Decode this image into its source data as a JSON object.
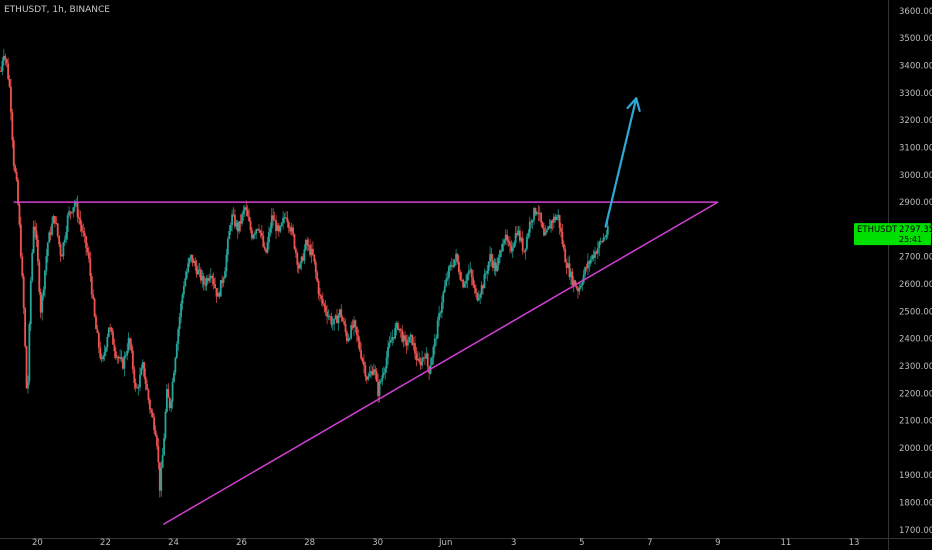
{
  "header": {
    "symbol_line": "ETHUSDT, 1h, BINANCE"
  },
  "price_label": {
    "symbol": "ETHUSDT",
    "price": "2797.35",
    "countdown": "25:41"
  },
  "colors": {
    "background": "#000000",
    "up_candle": "#26a69a",
    "down_candle": "#ef5350",
    "axis_text": "#bdbdbd",
    "trendline": "#d33fd5",
    "arrow": "#2ea8d5",
    "price_tag": "#00e000"
  },
  "chart_data": {
    "type": "candlestick",
    "title": "ETHUSDT, 1h, BINANCE",
    "y_axis": {
      "ticks": [
        1700,
        1800,
        1900,
        2000,
        2100,
        2200,
        2300,
        2400,
        2500,
        2600,
        2700,
        2800,
        2900,
        3000,
        3100,
        3200,
        3300,
        3400,
        3500,
        3600
      ],
      "tick_labels": [
        "1700.00",
        "1800.00",
        "1900.00",
        "2000.00",
        "2100.00",
        "2200.00",
        "2300.00",
        "2400.00",
        "2500.00",
        "2600.00",
        "2700.00",
        "2800.00",
        "2900.00",
        "3000.00",
        "3100.00",
        "3200.00",
        "3300.00",
        "3400.00",
        "3500.00",
        "3600.00"
      ],
      "range": [
        1670,
        3640
      ]
    },
    "x_axis": {
      "ticks": [
        "20",
        "22",
        "24",
        "26",
        "28",
        "30",
        "Jun",
        "3",
        "5",
        "7",
        "9",
        "11",
        "13"
      ],
      "tick_days": [
        20,
        22,
        24,
        26,
        28,
        30,
        32,
        34,
        36,
        38,
        40,
        42,
        44
      ],
      "range": [
        18.9,
        45.0
      ],
      "unit": "day (May, continuing into June)"
    },
    "grid": false,
    "price_path": [
      [
        18.93,
        3380
      ],
      [
        19.0,
        3460
      ],
      [
        19.1,
        3400
      ],
      [
        19.2,
        3300
      ],
      [
        19.3,
        3050
      ],
      [
        19.4,
        2950
      ],
      [
        19.5,
        2750
      ],
      [
        19.6,
        2500
      ],
      [
        19.7,
        2150
      ],
      [
        19.8,
        2600
      ],
      [
        19.9,
        2850
      ],
      [
        20.0,
        2700
      ],
      [
        20.1,
        2500
      ],
      [
        20.3,
        2750
      ],
      [
        20.5,
        2850
      ],
      [
        20.7,
        2700
      ],
      [
        20.9,
        2850
      ],
      [
        21.1,
        2900
      ],
      [
        21.3,
        2800
      ],
      [
        21.5,
        2700
      ],
      [
        21.7,
        2450
      ],
      [
        21.9,
        2300
      ],
      [
        22.1,
        2450
      ],
      [
        22.3,
        2350
      ],
      [
        22.5,
        2300
      ],
      [
        22.7,
        2400
      ],
      [
        22.9,
        2200
      ],
      [
        23.1,
        2300
      ],
      [
        23.3,
        2150
      ],
      [
        23.5,
        2050
      ],
      [
        23.6,
        1850
      ],
      [
        23.7,
        2000
      ],
      [
        23.8,
        2200
      ],
      [
        23.9,
        2150
      ],
      [
        24.1,
        2400
      ],
      [
        24.3,
        2600
      ],
      [
        24.5,
        2700
      ],
      [
        24.7,
        2650
      ],
      [
        24.9,
        2600
      ],
      [
        25.1,
        2650
      ],
      [
        25.3,
        2550
      ],
      [
        25.5,
        2650
      ],
      [
        25.7,
        2850
      ],
      [
        25.9,
        2800
      ],
      [
        26.1,
        2880
      ],
      [
        26.3,
        2780
      ],
      [
        26.5,
        2820
      ],
      [
        26.7,
        2700
      ],
      [
        26.9,
        2850
      ],
      [
        27.1,
        2780
      ],
      [
        27.3,
        2860
      ],
      [
        27.5,
        2780
      ],
      [
        27.7,
        2650
      ],
      [
        27.9,
        2750
      ],
      [
        28.1,
        2700
      ],
      [
        28.3,
        2550
      ],
      [
        28.5,
        2500
      ],
      [
        28.7,
        2450
      ],
      [
        28.9,
        2500
      ],
      [
        29.1,
        2400
      ],
      [
        29.3,
        2450
      ],
      [
        29.5,
        2350
      ],
      [
        29.7,
        2250
      ],
      [
        29.9,
        2300
      ],
      [
        30.0,
        2200
      ],
      [
        30.2,
        2300
      ],
      [
        30.4,
        2400
      ],
      [
        30.6,
        2450
      ],
      [
        30.8,
        2380
      ],
      [
        31.0,
        2400
      ],
      [
        31.2,
        2300
      ],
      [
        31.4,
        2350
      ],
      [
        31.5,
        2280
      ],
      [
        31.7,
        2400
      ],
      [
        31.9,
        2550
      ],
      [
        32.1,
        2650
      ],
      [
        32.3,
        2700
      ],
      [
        32.5,
        2600
      ],
      [
        32.7,
        2650
      ],
      [
        32.9,
        2550
      ],
      [
        33.1,
        2600
      ],
      [
        33.3,
        2700
      ],
      [
        33.5,
        2650
      ],
      [
        33.7,
        2780
      ],
      [
        33.9,
        2720
      ],
      [
        34.1,
        2800
      ],
      [
        34.3,
        2720
      ],
      [
        34.5,
        2840
      ],
      [
        34.7,
        2880
      ],
      [
        34.9,
        2760
      ],
      [
        35.1,
        2830
      ],
      [
        35.3,
        2850
      ],
      [
        35.5,
        2700
      ],
      [
        35.7,
        2620
      ],
      [
        35.9,
        2580
      ],
      [
        36.1,
        2650
      ],
      [
        36.3,
        2700
      ],
      [
        36.5,
        2740
      ],
      [
        36.7,
        2780
      ],
      [
        36.78,
        2797
      ]
    ],
    "annotations": [
      {
        "kind": "horizontal_resistance",
        "from": [
          19.3,
          2900
        ],
        "to": [
          40.0,
          2900
        ]
      },
      {
        "kind": "ascending_support",
        "from": [
          23.7,
          1720
        ],
        "to": [
          40.0,
          2900
        ]
      },
      {
        "kind": "arrow_up",
        "from": [
          36.7,
          2810
        ],
        "to": [
          37.6,
          3280
        ]
      }
    ],
    "last_price": 2797.35
  }
}
